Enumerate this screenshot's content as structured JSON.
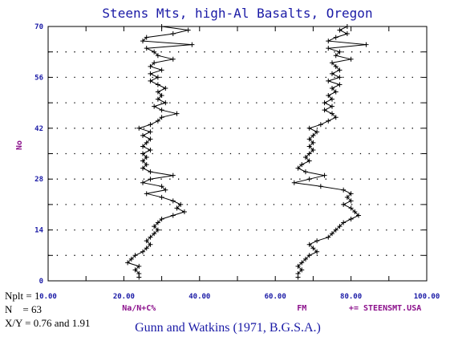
{
  "chart_data": {
    "type": "line",
    "title": "Steens Mts, high-Al Basalts, Oregon",
    "ylabel": "No",
    "xlim": [
      0,
      100
    ],
    "ylim": [
      0,
      70
    ],
    "xticks": [
      "0.00",
      "20.00",
      "40.00",
      "60.00",
      "80.00",
      "100.00"
    ],
    "yticks": [
      "0",
      "14",
      "28",
      "42",
      "56",
      "70"
    ],
    "grid": "dotted horizontal",
    "x_axis_labels": [
      {
        "text": "Na/N+C%",
        "at": 24
      },
      {
        "text": "FM",
        "at": 67
      },
      {
        "text": "+= STEENSMT.USA",
        "at": 89
      }
    ],
    "series": [
      {
        "name": "Na/N+C%",
        "color": "#000000",
        "points": [
          [
            24,
            1
          ],
          [
            24,
            2
          ],
          [
            23,
            3
          ],
          [
            24,
            4
          ],
          [
            21,
            5
          ],
          [
            22,
            6
          ],
          [
            23,
            7
          ],
          [
            25,
            8
          ],
          [
            26,
            9
          ],
          [
            27,
            10
          ],
          [
            26,
            11
          ],
          [
            27,
            12
          ],
          [
            28,
            13
          ],
          [
            29,
            14
          ],
          [
            28,
            15
          ],
          [
            29,
            16
          ],
          [
            30,
            17
          ],
          [
            33,
            18
          ],
          [
            36,
            19
          ],
          [
            34,
            20
          ],
          [
            35,
            21
          ],
          [
            33,
            22
          ],
          [
            30,
            23
          ],
          [
            26,
            24
          ],
          [
            31,
            25
          ],
          [
            30,
            26
          ],
          [
            25,
            27
          ],
          [
            27,
            28
          ],
          [
            33,
            29
          ],
          [
            27,
            30
          ],
          [
            25,
            31
          ],
          [
            26,
            32
          ],
          [
            25,
            33
          ],
          [
            26,
            34
          ],
          [
            25,
            35
          ],
          [
            27,
            36
          ],
          [
            25,
            37
          ],
          [
            26,
            38
          ],
          [
            27,
            39
          ],
          [
            25,
            40
          ],
          [
            27,
            41
          ],
          [
            24,
            42
          ],
          [
            27,
            43
          ],
          [
            29,
            44
          ],
          [
            30,
            45
          ],
          [
            34,
            46
          ],
          [
            30,
            47
          ],
          [
            28,
            48
          ],
          [
            31,
            49
          ],
          [
            29,
            50
          ],
          [
            30,
            51
          ],
          [
            29,
            52
          ],
          [
            31,
            53
          ],
          [
            29,
            54
          ],
          [
            27,
            55
          ],
          [
            29,
            56
          ],
          [
            27,
            57
          ],
          [
            30,
            58
          ],
          [
            27,
            59
          ],
          [
            28,
            60
          ],
          [
            33,
            61
          ],
          [
            29,
            62
          ],
          [
            28,
            63
          ],
          [
            26,
            64
          ],
          [
            38,
            65
          ],
          [
            25,
            66
          ],
          [
            26,
            67
          ],
          [
            33,
            68
          ],
          [
            37,
            69
          ],
          [
            30,
            70
          ]
        ]
      },
      {
        "name": "FM",
        "color": "#000000",
        "points": [
          [
            66,
            1
          ],
          [
            66,
            2
          ],
          [
            67,
            3
          ],
          [
            66,
            4
          ],
          [
            67,
            5
          ],
          [
            68,
            6
          ],
          [
            69,
            7
          ],
          [
            71,
            8
          ],
          [
            70,
            9
          ],
          [
            69,
            10
          ],
          [
            71,
            11
          ],
          [
            74,
            12
          ],
          [
            75,
            13
          ],
          [
            76,
            14
          ],
          [
            77,
            15
          ],
          [
            78,
            16
          ],
          [
            80,
            17
          ],
          [
            82,
            18
          ],
          [
            81,
            19
          ],
          [
            80,
            20
          ],
          [
            78,
            21
          ],
          [
            80,
            22
          ],
          [
            79,
            23
          ],
          [
            80,
            24
          ],
          [
            78,
            25
          ],
          [
            72,
            26
          ],
          [
            65,
            27
          ],
          [
            69,
            28
          ],
          [
            73,
            29
          ],
          [
            68,
            30
          ],
          [
            66,
            31
          ],
          [
            67,
            32
          ],
          [
            69,
            33
          ],
          [
            68,
            34
          ],
          [
            69,
            35
          ],
          [
            70,
            36
          ],
          [
            69,
            37
          ],
          [
            70,
            38
          ],
          [
            69,
            39
          ],
          [
            70,
            40
          ],
          [
            71,
            41
          ],
          [
            69,
            42
          ],
          [
            72,
            43
          ],
          [
            74,
            44
          ],
          [
            76,
            45
          ],
          [
            75,
            46
          ],
          [
            73,
            47
          ],
          [
            75,
            48
          ],
          [
            73,
            49
          ],
          [
            75,
            50
          ],
          [
            74,
            51
          ],
          [
            76,
            52
          ],
          [
            75,
            53
          ],
          [
            77,
            54
          ],
          [
            74,
            55
          ],
          [
            77,
            56
          ],
          [
            75,
            57
          ],
          [
            77,
            58
          ],
          [
            76,
            59
          ],
          [
            75,
            60
          ],
          [
            80,
            61
          ],
          [
            76,
            62
          ],
          [
            77,
            63
          ],
          [
            74,
            64
          ],
          [
            84,
            65
          ],
          [
            74,
            66
          ],
          [
            76,
            67
          ],
          [
            79,
            68
          ],
          [
            77,
            69
          ],
          [
            79,
            70
          ]
        ]
      }
    ]
  },
  "credit": "Gunn and Watkins (1971, B.G.S.A.)",
  "info": {
    "nplt": "Nplt = 1",
    "n": "N    = 63",
    "xy": "X/Y = 0.76 and 1.91"
  }
}
